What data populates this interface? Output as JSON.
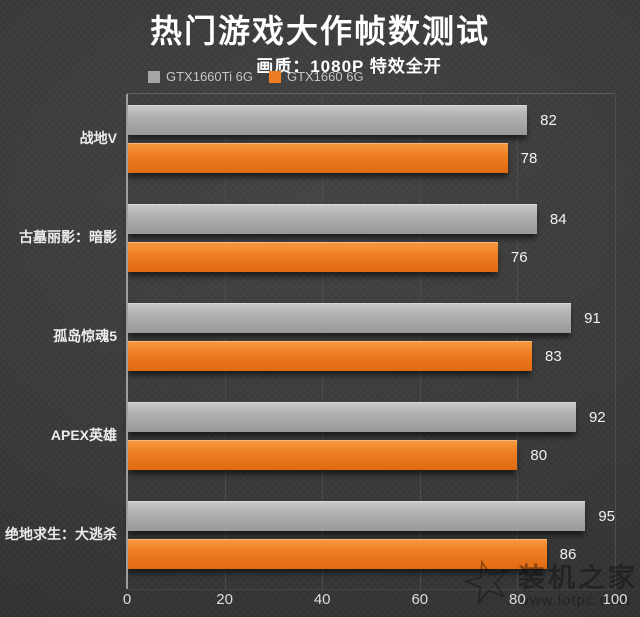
{
  "title": "热门游戏大作帧数测试",
  "subtitle": "画质：1080P 特效全开",
  "legend": [
    {
      "label": "GTX1660Ti 6G",
      "color": "#a6a6a6"
    },
    {
      "label": "GTX1660 6G",
      "color": "#ee7c20"
    }
  ],
  "watermark": {
    "name": "装机之家",
    "url": "www.lotpc.com",
    "star_icon": "☆"
  },
  "colors": {
    "background": "#3a3a3a",
    "bar_gray": "#a6a6a6",
    "bar_orange": "#ee7c20",
    "text": "#ffffff",
    "gridline": "#4d4d4d",
    "axis_line": "#9e9e9e"
  },
  "chart_data": {
    "type": "bar",
    "orientation": "horizontal",
    "title": "热门游戏大作帧数测试",
    "subtitle": "画质：1080P 特效全开",
    "categories": [
      "战地V",
      "古墓丽影：暗影",
      "孤岛惊魂5",
      "APEX英雄",
      "绝地求生：大逃杀"
    ],
    "series": [
      {
        "name": "GTX1660Ti 6G",
        "color": "#a6a6a6",
        "values": [
          82,
          84,
          91,
          92,
          95
        ]
      },
      {
        "name": "GTX1660 6G",
        "color": "#ee7c20",
        "values": [
          78,
          76,
          83,
          80,
          86
        ]
      }
    ],
    "xlabel": "",
    "ylabel": "",
    "xlim": [
      0,
      100
    ],
    "xticks": [
      0,
      20,
      40,
      60,
      80,
      100
    ],
    "grid": true,
    "legend_position": "top",
    "value_labels": true
  }
}
